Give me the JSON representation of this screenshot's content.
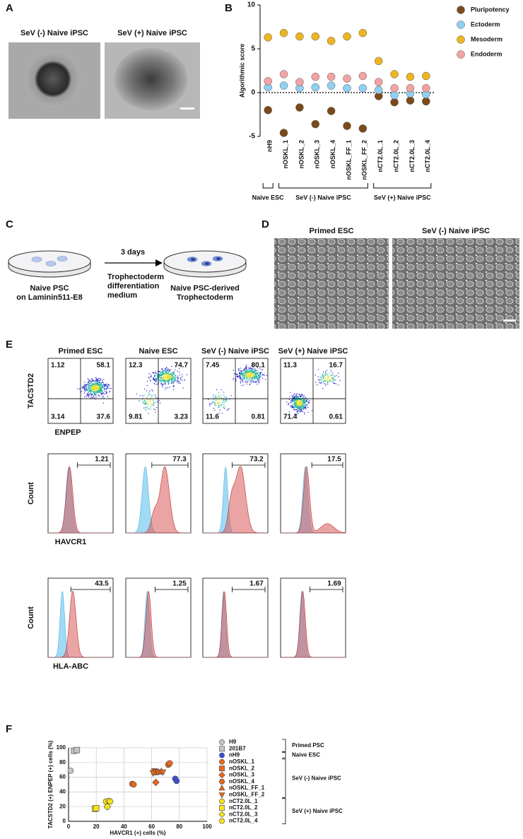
{
  "panel_labels": [
    "A",
    "B",
    "C",
    "D",
    "E",
    "F"
  ],
  "panel_a": {
    "images": [
      "SeV (-) Naive iPSC",
      "SeV (+) Naive iPSC"
    ]
  },
  "chart_data": [
    {
      "type": "dot",
      "y_label": "Algorithmic score",
      "legend": "right",
      "groups": [
        {
          "label": "Naive ESC",
          "categories": [
            "nH9"
          ]
        },
        {
          "label": "SeV (-) Naive iPSC",
          "categories": [
            "nOSKL_1",
            "nOSKL_2",
            "nOSKL_3",
            "nOSKL_4",
            "nOSKL_FF_1",
            "nOSKL_FF_2"
          ]
        },
        {
          "label": "SeV (+) Naive iPSC",
          "categories": [
            "nCT2.0L_1",
            "nCT2.0L_2",
            "nCT2.0L_3",
            "nCT2.0L_4"
          ]
        }
      ],
      "series": [
        {
          "name": "Pluripotency",
          "color": "#7b4a1a",
          "values": [
            -2.0,
            -4.6,
            -1.7,
            -3.6,
            -2.1,
            -3.8,
            -4.1,
            -0.4,
            -1.1,
            -0.9,
            -1.0
          ]
        },
        {
          "name": "Ectoderm",
          "color": "#8fd0f3",
          "values": [
            0.6,
            0.8,
            0.5,
            0.6,
            0.8,
            0.5,
            0.5,
            0.3,
            -0.3,
            -0.1,
            -0.2
          ]
        },
        {
          "name": "Mesoderm",
          "color": "#efb521",
          "values": [
            6.3,
            6.8,
            6.4,
            6.4,
            5.9,
            6.4,
            6.8,
            3.6,
            2.1,
            1.8,
            1.9
          ]
        },
        {
          "name": "Endoderm",
          "color": "#f2a3a3",
          "values": [
            1.3,
            2.1,
            1.2,
            1.8,
            1.8,
            1.6,
            1.9,
            1.2,
            0.5,
            0.5,
            0.5
          ]
        }
      ],
      "ylim": [
        -5,
        10
      ],
      "yticks": [
        -5,
        0,
        5,
        10
      ]
    },
    {
      "type": "scatter",
      "x_label": "HAVCR1 (+) cells (%)",
      "y_label": "TACSTD2 (+) ENPEP (+) cells (%)",
      "xlim": [
        0,
        100
      ],
      "ylim": [
        0,
        100
      ],
      "xticks": [
        0,
        20,
        40,
        60,
        80,
        100
      ],
      "yticks": [
        0,
        20,
        40,
        60,
        80,
        100
      ],
      "grid": true,
      "groups": [
        {
          "label": "Primed PSC",
          "series": [
            {
              "name": "H9",
              "color": "#c4c4c4",
              "marker": "circle",
              "x": [
                1.5
              ],
              "values": [
                69
              ]
            },
            {
              "name": "201B7",
              "color": "#c4c4c4",
              "marker": "square",
              "x": [
                4,
                6
              ],
              "values": [
                96,
                97
              ]
            }
          ]
        },
        {
          "label": "Naive ESC",
          "series": [
            {
              "name": "nH9",
              "color": "#3b4fd8",
              "marker": "circle",
              "x": [
                77,
                78
              ],
              "values": [
                58,
                55
              ]
            }
          ]
        },
        {
          "label": "SeV (-) Naive iPSC",
          "series": [
            {
              "name": "nOSKL_1",
              "color": "#e8681c",
              "marker": "circle",
              "x": [
                46,
                47
              ],
              "values": [
                51,
                50
              ]
            },
            {
              "name": "nOSKL_2",
              "color": "#e8681c",
              "marker": "square",
              "x": [
                62,
                63
              ],
              "values": [
                68,
                67
              ]
            },
            {
              "name": "nOSKL_3",
              "color": "#e8681c",
              "marker": "diamond",
              "x": [
                63
              ],
              "values": [
                53
              ]
            },
            {
              "name": "nOSKL_4",
              "color": "#e8681c",
              "marker": "hexagon",
              "x": [
                72,
                73
              ],
              "values": [
                77,
                79
              ]
            },
            {
              "name": "nOSKL_FF_1",
              "color": "#e8681c",
              "marker": "triangle",
              "x": [
                65,
                67
              ],
              "values": [
                67,
                68
              ]
            },
            {
              "name": "nOSKL_FF_2",
              "color": "#e8681c",
              "marker": "triangle-down",
              "x": [
                61,
                68
              ],
              "values": [
                66,
                67
              ]
            }
          ]
        },
        {
          "label": "SeV (+) Naive iPSC",
          "series": [
            {
              "name": "nCT2.0L_1",
              "color": "#f7e31a",
              "marker": "circle",
              "x": [
                27,
                29
              ],
              "values": [
                27,
                28
              ]
            },
            {
              "name": "nCT2.0L_2",
              "color": "#f7e31a",
              "marker": "square",
              "x": [
                19,
                20
              ],
              "values": [
                17,
                18
              ]
            },
            {
              "name": "nCT2.0L_3",
              "color": "#f7e31a",
              "marker": "diamond",
              "x": [
                28
              ],
              "values": [
                20
              ]
            },
            {
              "name": "nCT2.0L_4",
              "color": "#f7e31a",
              "marker": "hexagon",
              "x": [
                28,
                30
              ],
              "values": [
                20,
                27
              ]
            }
          ]
        }
      ]
    }
  ],
  "panel_c": {
    "start": [
      "Naive PSC",
      "on Laminin511-E8"
    ],
    "duration": "3 days",
    "medium": [
      "Trophectoderm",
      "differentiation",
      "medium"
    ],
    "end": [
      "Naive PSC-derived",
      "Trophectoderm"
    ]
  },
  "panel_d": {
    "images": [
      "Primed ESC",
      "SeV (-) Naive iPSC"
    ]
  },
  "panel_e": {
    "columns": [
      "Primed ESC",
      "Naive ESC",
      "SeV (-) Naive iPSC",
      "SeV (+) Naive iPSC"
    ],
    "scatter_y_label": "TACSTD2",
    "scatter_x_label": "ENPEP",
    "quadrants": [
      [
        1.12,
        58.1,
        3.14,
        37.6
      ],
      [
        12.3,
        74.7,
        9.81,
        3.23
      ],
      [
        7.45,
        80.1,
        11.6,
        0.81
      ],
      [
        11.3,
        16.7,
        71.4,
        0.61
      ]
    ],
    "count_label": "Count",
    "histograms": [
      {
        "label": "HAVCR1",
        "gates": [
          1.21,
          77.3,
          73.2,
          17.5
        ]
      },
      {
        "label": "HLA-ABC",
        "gates": [
          43.5,
          1.25,
          1.67,
          1.69
        ]
      }
    ]
  }
}
